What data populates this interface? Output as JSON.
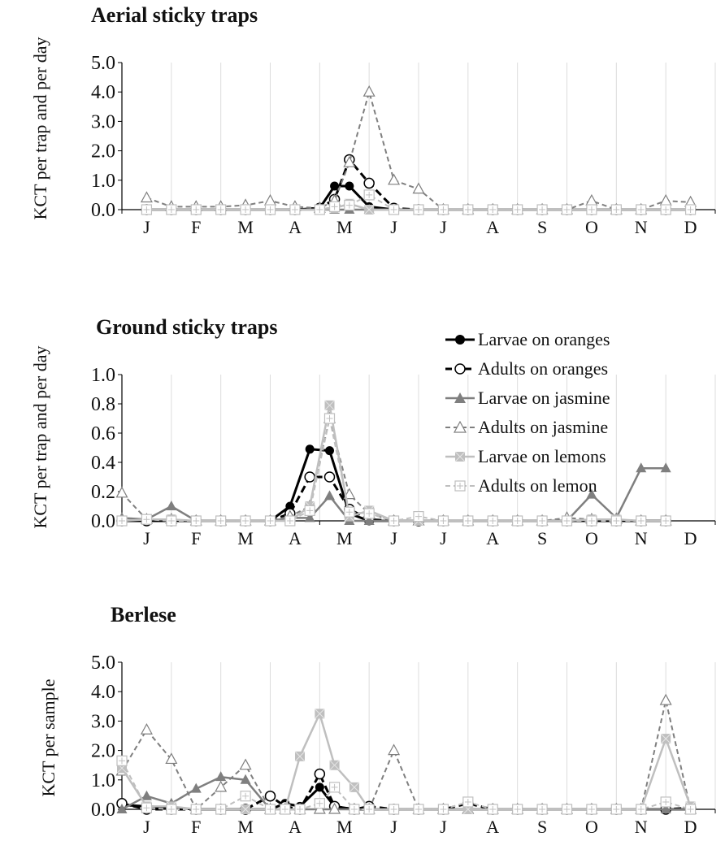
{
  "chart_data": [
    {
      "type": "line",
      "title": "Aerial sticky traps",
      "ylabel": "KCT per trap and per day",
      "ylim": [
        0,
        5
      ],
      "yticks": [
        "0.0",
        "1.0",
        "2.0",
        "3.0",
        "4.0",
        "5.0"
      ],
      "month_labels": [
        "J",
        "F",
        "M",
        "A",
        "M",
        "J",
        "J",
        "A",
        "S",
        "O",
        "N",
        "D"
      ],
      "series": [
        {
          "name": "Larvae on oranges",
          "x": [
            0.5,
            1,
            1.5,
            2,
            2.5,
            3,
            3.5,
            4,
            4.3,
            4.6,
            5,
            5.5,
            6,
            6.5,
            7,
            7.5,
            8,
            8.5,
            9,
            9.5,
            10,
            10.5,
            11,
            11.5
          ],
          "values": [
            0,
            0,
            0,
            0,
            0,
            0,
            0,
            0.05,
            0.8,
            0.8,
            0.1,
            0,
            0,
            0,
            0,
            0,
            0,
            0,
            0,
            0,
            0,
            0,
            0,
            0
          ]
        },
        {
          "name": "Adults on oranges",
          "x": [
            0.5,
            1,
            1.5,
            2,
            2.5,
            3,
            3.5,
            4,
            4.3,
            4.6,
            5,
            5.5,
            6,
            6.5,
            7,
            7.5,
            8,
            8.5,
            9,
            9.5,
            10,
            10.5,
            11,
            11.5
          ],
          "values": [
            0,
            0,
            0,
            0,
            0,
            0,
            0,
            0.05,
            0.35,
            1.7,
            0.9,
            0.05,
            0,
            0,
            0,
            0,
            0,
            0,
            0,
            0,
            0,
            0,
            0,
            0
          ]
        },
        {
          "name": "Larvae on jasmine",
          "x": [
            0.5,
            1,
            1.5,
            2,
            2.5,
            3,
            3.5,
            4,
            4.3,
            4.6,
            5,
            5.5,
            6,
            6.5,
            7,
            7.5,
            8,
            8.5,
            9,
            9.5,
            10,
            10.5,
            11,
            11.5
          ],
          "values": [
            0,
            0,
            0,
            0,
            0,
            0,
            0,
            0,
            0,
            0,
            0,
            0,
            0,
            0,
            0,
            0,
            0,
            0,
            0,
            0,
            0,
            0,
            0,
            0
          ]
        },
        {
          "name": "Adults on jasmine",
          "x": [
            0.5,
            1,
            1.5,
            2,
            2.5,
            3,
            3.5,
            4,
            4.3,
            4.6,
            5,
            5.5,
            6,
            6.5,
            7,
            7.5,
            8,
            8.5,
            9,
            9.5,
            10,
            10.5,
            11,
            11.5
          ],
          "values": [
            0.4,
            0.1,
            0.1,
            0.1,
            0.15,
            0.3,
            0.1,
            0.05,
            0.3,
            1.6,
            4.0,
            1.0,
            0.7,
            0,
            0,
            0,
            0,
            0,
            0,
            0.3,
            0,
            0,
            0.3,
            0.25
          ]
        },
        {
          "name": "Larvae on lemons",
          "x": [
            0.5,
            1,
            1.5,
            2,
            2.5,
            3,
            3.5,
            4,
            4.3,
            4.6,
            5,
            5.5,
            6,
            6.5,
            7,
            7.5,
            8,
            8.5,
            9,
            9.5,
            10,
            10.5,
            11,
            11.5
          ],
          "values": [
            0,
            0,
            0,
            0,
            0,
            0,
            0,
            0,
            0.05,
            0.2,
            0,
            0,
            0,
            0,
            0,
            0,
            0,
            0,
            0,
            0,
            0,
            0,
            0,
            0
          ]
        },
        {
          "name": "Adults on lemon",
          "x": [
            0.5,
            1,
            1.5,
            2,
            2.5,
            3,
            3.5,
            4,
            4.3,
            4.6,
            5,
            5.5,
            6,
            6.5,
            7,
            7.5,
            8,
            8.5,
            9,
            9.5,
            10,
            10.5,
            11,
            11.5
          ],
          "values": [
            0,
            0,
            0,
            0,
            0,
            0,
            0,
            0,
            0.1,
            0.15,
            0.5,
            0,
            0,
            0,
            0,
            0,
            0,
            0,
            0,
            0,
            0,
            0,
            0,
            0
          ]
        }
      ]
    },
    {
      "type": "line",
      "title": "Ground sticky traps",
      "ylabel": "KCT per trap and per day",
      "ylim": [
        0,
        1
      ],
      "yticks": [
        "0.0",
        "0.2",
        "0.4",
        "0.6",
        "0.8",
        "1.0"
      ],
      "month_labels": [
        "J",
        "F",
        "M",
        "A",
        "M",
        "J",
        "J",
        "A",
        "S",
        "O",
        "N",
        "D"
      ],
      "series": [
        {
          "name": "Larvae on oranges",
          "x": [
            0,
            0.5,
            1,
            1.5,
            2,
            2.5,
            3,
            3.4,
            3.8,
            4.2,
            4.6,
            5,
            5.5,
            6,
            6.5,
            7,
            7.5,
            8,
            8.5,
            9,
            9.5,
            10,
            10.5,
            11
          ],
          "values": [
            0,
            0,
            0,
            0,
            0,
            0,
            0,
            0.1,
            0.49,
            0.48,
            0.05,
            0,
            0,
            0,
            0,
            0,
            0,
            0,
            0,
            0,
            0,
            0,
            0,
            0
          ]
        },
        {
          "name": "Adults on oranges",
          "x": [
            0,
            0.5,
            1,
            1.5,
            2,
            2.5,
            3,
            3.4,
            3.8,
            4.2,
            4.6,
            5,
            5.5,
            6,
            6.5,
            7,
            7.5,
            8,
            8.5,
            9,
            9.5,
            10,
            10.5,
            11
          ],
          "values": [
            0,
            0,
            0,
            0,
            0,
            0,
            0,
            0.05,
            0.3,
            0.3,
            0.08,
            0.01,
            0,
            0,
            0,
            0,
            0,
            0,
            0,
            0,
            0,
            0,
            0,
            0
          ]
        },
        {
          "name": "Larvae on jasmine",
          "x": [
            0,
            0.5,
            1,
            1.5,
            2,
            2.5,
            3,
            3.4,
            3.8,
            4.2,
            4.6,
            5,
            5.5,
            6,
            6.5,
            7,
            7.5,
            8,
            8.5,
            9,
            9.5,
            10,
            10.5,
            11
          ],
          "values": [
            0.02,
            0.01,
            0.1,
            0,
            0,
            0,
            0,
            0.02,
            0.02,
            0.17,
            0,
            0,
            0,
            0,
            0,
            0,
            0,
            0,
            0,
            0,
            0.18,
            0.02,
            0.36,
            0.36
          ]
        },
        {
          "name": "Adults on jasmine",
          "x": [
            0,
            0.5,
            1,
            1.5,
            2,
            2.5,
            3,
            3.4,
            3.8,
            4.2,
            4.6,
            5,
            5.5,
            6,
            6.5,
            7,
            7.5,
            8,
            8.5,
            9,
            9.5,
            10,
            10.5,
            11
          ],
          "values": [
            0.19,
            0.01,
            0.01,
            0,
            0,
            0,
            0,
            0.03,
            0.1,
            0.7,
            0.18,
            0.05,
            0,
            0,
            0,
            0,
            0,
            0,
            0,
            0.02,
            0.01,
            0.01,
            0,
            0
          ]
        },
        {
          "name": "Larvae on lemons",
          "x": [
            0,
            0.5,
            1,
            1.5,
            2,
            2.5,
            3,
            3.4,
            3.8,
            4.2,
            4.6,
            5,
            5.5,
            6,
            6.5,
            7,
            7.5,
            8,
            8.5,
            9,
            9.5,
            10,
            10.5,
            11
          ],
          "values": [
            0,
            0.01,
            0.01,
            0,
            0,
            0,
            0,
            0,
            0.1,
            0.79,
            0.03,
            0.07,
            0,
            0,
            0,
            0,
            0,
            0,
            0,
            0,
            0.01,
            0.01,
            0,
            0
          ]
        },
        {
          "name": "Adults on lemon",
          "x": [
            0,
            0.5,
            1,
            1.5,
            2,
            2.5,
            3,
            3.4,
            3.8,
            4.2,
            4.6,
            5,
            5.5,
            6,
            6.5,
            7,
            7.5,
            8,
            8.5,
            9,
            9.5,
            10,
            10.5,
            11
          ],
          "values": [
            0,
            0.01,
            0,
            0,
            0,
            0,
            0,
            0,
            0.07,
            0.7,
            0.06,
            0.05,
            0,
            0.03,
            0,
            0,
            0,
            0,
            0,
            0,
            0,
            0,
            0,
            0
          ]
        }
      ],
      "legend": "top-right"
    },
    {
      "type": "line",
      "title": "Berlese",
      "ylabel": "KCT per sample",
      "ylim": [
        0,
        5
      ],
      "yticks": [
        "0.0",
        "1.0",
        "2.0",
        "3.0",
        "4.0",
        "5.0"
      ],
      "month_labels": [
        "J",
        "F",
        "M",
        "A",
        "M",
        "J",
        "J",
        "A",
        "S",
        "O",
        "N",
        "D"
      ],
      "series": [
        {
          "name": "Larvae on oranges",
          "x": [
            0,
            0.5,
            1,
            1.5,
            2,
            2.5,
            3,
            3.3,
            3.6,
            4,
            4.3,
            4.7,
            5,
            5.5,
            6,
            6.5,
            7,
            7.5,
            8,
            8.5,
            9,
            9.5,
            10,
            10.5,
            11,
            11.5
          ],
          "values": [
            0.15,
            0.1,
            0.05,
            0,
            0,
            0,
            0,
            0.2,
            0.1,
            0.75,
            0.1,
            0,
            0,
            0,
            0,
            0,
            0,
            0,
            0,
            0,
            0,
            0,
            0,
            0,
            0,
            0
          ]
        },
        {
          "name": "Adults on oranges",
          "x": [
            0,
            0.5,
            1,
            1.5,
            2,
            2.5,
            3,
            3.3,
            3.6,
            4,
            4.3,
            4.7,
            5,
            5.5,
            6,
            6.5,
            7,
            7.5,
            8,
            8.5,
            9,
            9.5,
            10,
            10.5,
            11,
            11.5
          ],
          "values": [
            0.2,
            0,
            0,
            0,
            0,
            0,
            0.45,
            0.1,
            0,
            1.2,
            0.1,
            0,
            0.1,
            0,
            0,
            0,
            0.2,
            0,
            0,
            0,
            0,
            0,
            0,
            0,
            0,
            0.05
          ]
        },
        {
          "name": "Larvae on jasmine",
          "x": [
            0,
            0.5,
            1,
            1.5,
            2,
            2.5,
            3,
            3.3,
            3.6,
            4,
            4.3,
            4.7,
            5,
            5.5,
            6,
            6.5,
            7,
            7.5,
            8,
            8.5,
            9,
            9.5,
            10,
            10.5,
            11,
            11.5
          ],
          "values": [
            0,
            0.45,
            0.2,
            0.7,
            1.1,
            1.0,
            0,
            0,
            0,
            0,
            0,
            0,
            0,
            0,
            0,
            0,
            0,
            0,
            0,
            0,
            0,
            0,
            0,
            0,
            0,
            0
          ]
        },
        {
          "name": "Adults on jasmine",
          "x": [
            0,
            0.5,
            1,
            1.5,
            2,
            2.5,
            3,
            3.3,
            3.6,
            4,
            4.3,
            4.7,
            5,
            5.5,
            6,
            6.5,
            7,
            7.5,
            8,
            8.5,
            9,
            9.5,
            10,
            10.5,
            11,
            11.5
          ],
          "values": [
            1.3,
            2.7,
            1.7,
            0,
            0.75,
            1.5,
            0,
            0,
            0,
            0,
            0,
            0,
            0,
            2.0,
            0,
            0,
            0,
            0,
            0,
            0,
            0,
            0,
            0,
            0,
            3.7,
            0
          ]
        },
        {
          "name": "Larvae on lemons",
          "x": [
            0,
            0.5,
            1,
            1.5,
            2,
            2.5,
            3,
            3.3,
            3.6,
            4,
            4.3,
            4.7,
            5,
            5.5,
            6,
            6.5,
            7,
            7.5,
            8,
            8.5,
            9,
            9.5,
            10,
            10.5,
            11,
            11.5
          ],
          "values": [
            1.4,
            0.1,
            0.1,
            0,
            0,
            0,
            0,
            0,
            1.8,
            3.25,
            1.5,
            0.75,
            0,
            0,
            0,
            0,
            0,
            0,
            0,
            0,
            0,
            0,
            0,
            0,
            2.4,
            0.1
          ]
        },
        {
          "name": "Adults on lemon",
          "x": [
            0,
            0.5,
            1,
            1.5,
            2,
            2.5,
            3,
            3.3,
            3.6,
            4,
            4.3,
            4.7,
            5,
            5.5,
            6,
            6.5,
            7,
            7.5,
            8,
            8.5,
            9,
            9.5,
            10,
            10.5,
            11,
            11.5
          ],
          "values": [
            1.65,
            0.05,
            0,
            0,
            0,
            0.45,
            0,
            0,
            0,
            0.2,
            0.75,
            0,
            0,
            0,
            0,
            0,
            0.25,
            0,
            0,
            0,
            0,
            0,
            0,
            0,
            0.25,
            0
          ]
        }
      ]
    }
  ],
  "legend_items": [
    "Larvae on oranges",
    "Adults on oranges",
    "Larvae on jasmine",
    "Adults on jasmine",
    "Larvae on lemons",
    "Adults on lemon"
  ]
}
